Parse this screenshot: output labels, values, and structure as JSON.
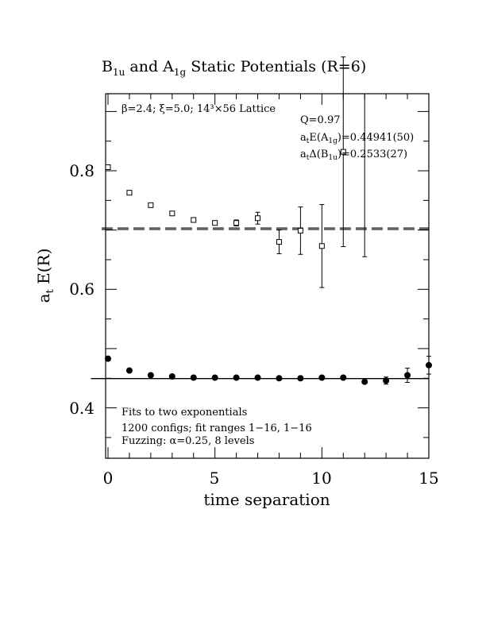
{
  "chart_data": {
    "type": "scatter",
    "title": "B₁ᵤ and A₁g Static Potentials (R=6)",
    "title_parts": {
      "t1": "B",
      "t1sub": "1u",
      "t2": " and A",
      "t2sub": "1g",
      "t3": " Static Potentials (R=6)"
    },
    "xlabel": "time separation",
    "ylabel_main": "a",
    "ylabel_sub": "t",
    "ylabel_rest": " E(R)",
    "xlim": [
      0,
      15
    ],
    "ylim": [
      0.315,
      0.93
    ],
    "x_ticks": [
      0,
      5,
      10,
      15
    ],
    "y_ticks": [
      0.4,
      0.6,
      0.8
    ],
    "x_tick_labels": [
      "0",
      "5",
      "10",
      "15"
    ],
    "y_tick_labels": [
      "0.4",
      "0.6",
      "0.8"
    ],
    "annotations": {
      "lattice": "β=2.4; ξ=5.0; 14³×56 Lattice",
      "q": "Q=0.97",
      "ea1g_pre": "a",
      "ea1g_sub1": "t",
      "ea1g_mid": "E(A",
      "ea1g_sub2": "1g",
      "ea1g_post": ")=0.44941(50)",
      "db1u_pre": "a",
      "db1u_sub1": "t",
      "db1u_mid": "Δ(B",
      "db1u_sub2": "1u",
      "db1u_post": ")=0.2533(27)",
      "fits1": "Fits to two exponentials",
      "fits2": "1200 configs; fit ranges 1−16, 1−16",
      "fits3": "Fuzzing: α=0.25, 8 levels"
    },
    "series": [
      {
        "marker": "open-square",
        "x": [
          0,
          1,
          2,
          3,
          4,
          5,
          6,
          7,
          8,
          9,
          10,
          11
        ],
        "y": [
          0.806,
          0.763,
          0.742,
          0.728,
          0.717,
          0.712,
          0.712,
          0.72,
          0.68,
          0.699,
          0.673,
          0.832
        ],
        "err": [
          0.002,
          0.002,
          0.002,
          0.002,
          0.003,
          0.003,
          0.005,
          0.01,
          0.02,
          0.04,
          0.07,
          0.16
        ]
      },
      {
        "marker": "filled-circle",
        "x": [
          0,
          1,
          2,
          3,
          4,
          5,
          6,
          7,
          8,
          9,
          10,
          11,
          12,
          13,
          14,
          15
        ],
        "y": [
          0.483,
          0.463,
          0.455,
          0.453,
          0.451,
          0.451,
          0.451,
          0.451,
          0.45,
          0.45,
          0.451,
          0.451,
          0.444,
          0.446,
          0.455,
          0.472
        ],
        "err": [
          0,
          0,
          0,
          0,
          0,
          0,
          0,
          0,
          0,
          0,
          0,
          0,
          0,
          0.006,
          0.012,
          0.015
        ]
      }
    ],
    "tall_error_bar": {
      "x": 12,
      "y_low": 0.655,
      "y_high": 0.93
    },
    "fit_lines": [
      {
        "style": "solid",
        "y": 0.4494,
        "x": [
          -0.8,
          15
        ]
      },
      {
        "style": "double-dashed",
        "y": [
          0.7009,
          0.7035
        ],
        "x": [
          -0.3,
          15
        ]
      }
    ]
  }
}
